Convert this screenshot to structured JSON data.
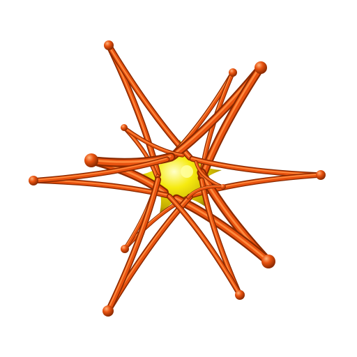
{
  "scene": {
    "subject": "3d-star-tube-model",
    "colors": {
      "background": "#ffffff",
      "tube_light": "#ff8a3d",
      "tube_mid": "#e8520f",
      "tube_dark": "#8a2a00",
      "core_light": "#ffffa0",
      "core_mid": "#f3e200",
      "core_dark": "#a89200"
    },
    "spike_count": 12
  }
}
